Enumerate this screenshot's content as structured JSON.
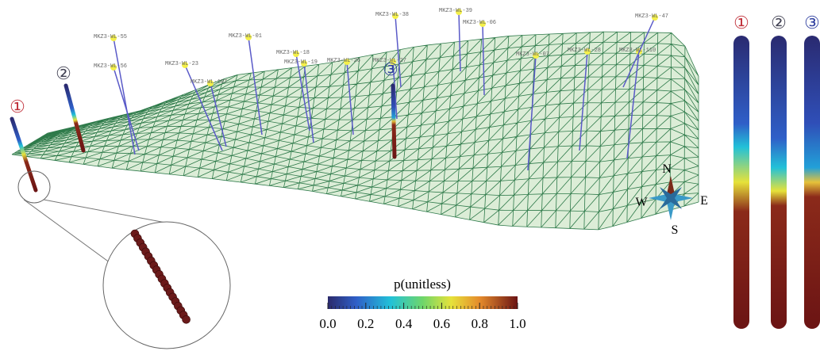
{
  "well_markers": [
    "①",
    "②",
    "③"
  ],
  "well_names": [
    "MKZ3-WL-55",
    "MKZ3-WL-56",
    "MKZ3-WL-23",
    "MKZ3-WL-107",
    "MKZ3-WL-01",
    "MKZ3-WL-18",
    "MKZ3-WL-19",
    "MKZ3-WL-26",
    "MKZ3-WL-27",
    "MKZ3-WL-38",
    "MKZ3-WL-39",
    "MKZ3-WL-06",
    "MKZ3-WL-07",
    "MKZ3-WL-28",
    "MKZ3-WL-110",
    "MKZ3-WL-47"
  ],
  "compass": {
    "n": "N",
    "s": "S",
    "e": "E",
    "w": "W"
  },
  "colorbar": {
    "title": "p(unitless)",
    "lim": [
      0,
      1
    ],
    "ticks": [
      {
        "value": 0,
        "label": "0.0"
      },
      {
        "value": 0.2,
        "label": "0.2"
      },
      {
        "value": 0.4,
        "label": "0.4"
      },
      {
        "value": 0.6,
        "label": "0.6"
      },
      {
        "value": 0.8,
        "label": "0.8"
      },
      {
        "value": 1,
        "label": "1.0"
      }
    ]
  }
}
